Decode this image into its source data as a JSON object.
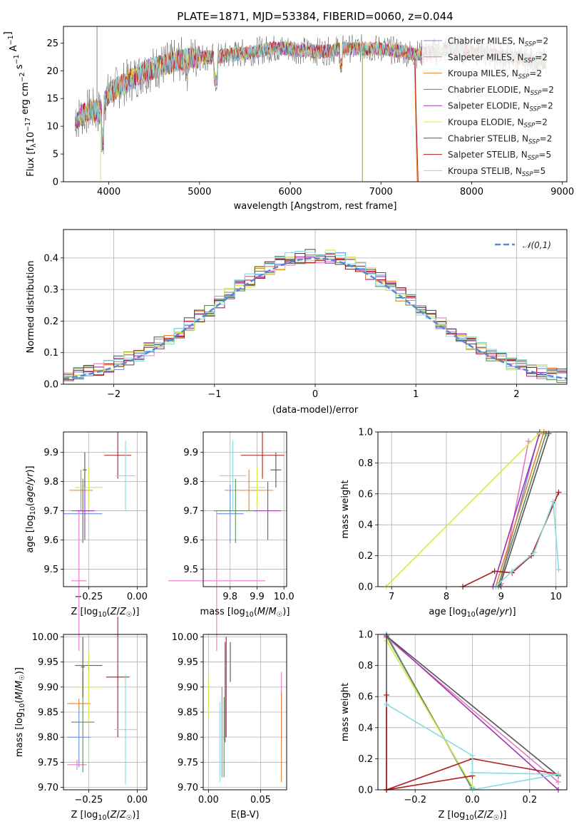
{
  "figure": {
    "title": "PLATE=1871, MJD=53384, FIBERID=0060, z=0.044"
  },
  "series_styles": [
    {
      "name": "Chabrier MILES",
      "nssp": "2",
      "color": "#6f8fd9"
    },
    {
      "name": "Salpeter MILES",
      "nssp": "2",
      "color": "#e47cc0"
    },
    {
      "name": "Kroupa MILES",
      "nssp": "2",
      "color": "#e8822a"
    },
    {
      "name": "Chabrier ELODIE",
      "nssp": "2",
      "color": "#5c8a5c"
    },
    {
      "name": "Salpeter ELODIE",
      "nssp": "2",
      "color": "#a035b0"
    },
    {
      "name": "Kroupa ELODIE",
      "nssp": "2",
      "color": "#d5e84a"
    },
    {
      "name": "Chabrier STELIB",
      "nssp": "2",
      "color": "#555555"
    },
    {
      "name": "Salpeter STELIB",
      "nssp": "5",
      "color": "#b01c1c"
    },
    {
      "name": "Kroupa STELIB",
      "nssp": "5",
      "color": "#87dbe0"
    }
  ],
  "chart_data": [
    {
      "id": "spectrum",
      "type": "line",
      "title": "PLATE=1871, MJD=53384, FIBERID=0060, z=0.044",
      "xlabel": "wavelength [Angstrom, rest frame]",
      "ylabel": "Flux [f_λ 10^-17 erg cm^-2 s^-1 A^-1]",
      "xlim": [
        3500,
        9050
      ],
      "ylim": [
        0,
        28
      ],
      "xticks": [
        "4000",
        "5000",
        "6000",
        "7000",
        "8000",
        "9000"
      ],
      "yticks": [
        "0",
        "5",
        "10",
        "15",
        "20",
        "25"
      ],
      "legend_position": "upper right",
      "data_envelope": {
        "x": [
          3620,
          3700,
          3800,
          3900,
          4000,
          4200,
          4400,
          4600,
          4800,
          5000,
          5200,
          5400,
          5600,
          5800,
          6000,
          6200,
          6400,
          6600,
          6800,
          7000,
          7200,
          7400,
          7600,
          7800,
          8000,
          8200,
          8400,
          8600,
          8800
        ],
        "y": [
          11,
          12,
          13,
          12.5,
          16,
          18,
          20,
          21,
          22,
          22.5,
          22.5,
          23,
          23.5,
          24,
          24,
          23.5,
          23.5,
          24,
          24,
          24,
          23.5,
          23,
          23.5,
          24,
          23.5,
          23,
          22.5,
          22,
          21.5
        ]
      }
    },
    {
      "id": "residual-histogram",
      "type": "bar",
      "xlabel": "(data-model)/error",
      "ylabel": "Normed distribution",
      "xlim": [
        -2.5,
        2.5
      ],
      "ylim": [
        0,
        0.49
      ],
      "xticks": [
        "−2",
        "−1",
        "0",
        "1",
        "2"
      ],
      "yticks": [
        "0.0",
        "0.1",
        "0.2",
        "0.3",
        "0.4"
      ],
      "reference_curve": {
        "name": "𝒩(0,1)",
        "mean": 0,
        "sigma": 1
      },
      "bin_width": 0.1
    },
    {
      "id": "age-vs-Z",
      "type": "scatter",
      "xlabel": "Z [log10(Z/Z☉)]",
      "ylabel": "age [log10(age/yr)]",
      "xlim": [
        -0.38,
        0.05
      ],
      "ylim": [
        9.44,
        9.97
      ],
      "xticks": [
        "−0.25",
        "0.00"
      ],
      "yticks": [
        "9.5",
        "9.6",
        "9.7",
        "9.8",
        "9.9"
      ],
      "points": [
        {
          "x": -0.28,
          "y": 9.69,
          "xerr": 0.1,
          "yerr": 0.1
        },
        {
          "x": -0.3,
          "y": 9.46,
          "xerr": 0.04,
          "yerr": 0.24
        },
        {
          "x": -0.29,
          "y": 9.77,
          "xerr": 0.06,
          "yerr": 0.07
        },
        {
          "x": -0.28,
          "y": 9.7,
          "xerr": 0.06,
          "yerr": 0.11
        },
        {
          "x": -0.27,
          "y": 9.7,
          "xerr": 0.05,
          "yerr": 0.1
        },
        {
          "x": -0.25,
          "y": 9.78,
          "xerr": 0.07,
          "yerr": 0.07
        },
        {
          "x": -0.27,
          "y": 9.84,
          "xerr": 0.01,
          "yerr": 0.06
        },
        {
          "x": -0.1,
          "y": 9.89,
          "xerr": 0.07,
          "yerr": 0.08
        },
        {
          "x": -0.06,
          "y": 9.82,
          "xerr": 0.05,
          "yerr": 0.12
        }
      ]
    },
    {
      "id": "age-vs-mass",
      "type": "scatter",
      "xlabel": "mass [log10(M/M☉)]",
      "ylabel": "",
      "xlim": [
        9.7,
        10.01
      ],
      "ylim": [
        9.44,
        9.97
      ],
      "xticks": [
        "9.8",
        "9.9",
        "10.0"
      ],
      "yticks": [
        "9.5",
        "9.6",
        "9.7",
        "9.8",
        "9.9"
      ],
      "points": [
        {
          "x": 9.8,
          "y": 9.69,
          "xerr": 0.05,
          "yerr": 0.1
        },
        {
          "x": 9.75,
          "y": 9.46,
          "xerr": 0.18,
          "yerr": 0.24
        },
        {
          "x": 9.87,
          "y": 9.77,
          "xerr": 0.09,
          "yerr": 0.07
        },
        {
          "x": 9.82,
          "y": 9.7,
          "xerr": 0.08,
          "yerr": 0.11
        },
        {
          "x": 9.94,
          "y": 9.7,
          "xerr": 0.05,
          "yerr": 0.1
        },
        {
          "x": 9.9,
          "y": 9.78,
          "xerr": 0.03,
          "yerr": 0.07
        },
        {
          "x": 9.97,
          "y": 9.84,
          "xerr": 0.02,
          "yerr": 0.06
        },
        {
          "x": 9.92,
          "y": 9.89,
          "xerr": 0.08,
          "yerr": 0.08
        },
        {
          "x": 9.81,
          "y": 9.82,
          "xerr": 0.05,
          "yerr": 0.12
        }
      ]
    },
    {
      "id": "mass-weight-vs-age",
      "type": "line",
      "xlabel": "age [log10(age/yr)]",
      "ylabel": "mass weight",
      "xlim": [
        6.75,
        10.2
      ],
      "ylim": [
        0,
        1
      ],
      "xticks": [
        "7",
        "8",
        "9",
        "10"
      ],
      "yticks": [
        "0.0",
        "0.2",
        "0.4",
        "0.6",
        "0.8",
        "1.0"
      ],
      "grid": true,
      "series": [
        {
          "x": [
            8.95,
            9.7
          ],
          "y": [
            0.0,
            1.0
          ]
        },
        {
          "x": [
            9.0,
            9.5
          ],
          "y": [
            0.02,
            0.94
          ]
        },
        {
          "x": [
            8.9,
            9.78
          ],
          "y": [
            0.0,
            1.0
          ]
        },
        {
          "x": [
            8.95,
            9.82
          ],
          "y": [
            0.01,
            0.99
          ]
        },
        {
          "x": [
            8.85,
            9.7
          ],
          "y": [
            0.0,
            0.99
          ]
        },
        {
          "x": [
            6.9,
            9.72
          ],
          "y": [
            0.0,
            1.0
          ]
        },
        {
          "x": [
            8.98,
            9.87
          ],
          "y": [
            0.01,
            0.99
          ]
        },
        {
          "x": [
            8.3,
            8.88,
            9.2,
            9.55,
            10.05
          ],
          "y": [
            0.0,
            0.1,
            0.09,
            0.2,
            0.61
          ]
        },
        {
          "x": [
            8.9,
            9.2,
            9.6,
            9.95,
            10.05
          ],
          "y": [
            0.0,
            0.1,
            0.22,
            0.55,
            0.11
          ]
        }
      ]
    },
    {
      "id": "mass-vs-Z",
      "type": "scatter",
      "xlabel": "Z [log10(Z/Z☉)]",
      "ylabel": "mass [log10(M/M☉)]",
      "xlim": [
        -0.38,
        0.05
      ],
      "ylim": [
        9.695,
        10.005
      ],
      "xticks": [
        "−0.25",
        "0.00"
      ],
      "yticks": [
        "9.70",
        "9.75",
        "9.80",
        "9.85",
        "9.90",
        "9.95",
        "10.00"
      ],
      "points": [
        {
          "x": -0.3,
          "y": 9.8,
          "xerr": 0.06,
          "yerr": 0.06
        },
        {
          "x": -0.31,
          "y": 9.745,
          "xerr": 0.05,
          "yerr": 0.01
        },
        {
          "x": -0.3,
          "y": 9.867,
          "xerr": 0.06,
          "yerr": 0.01
        },
        {
          "x": -0.28,
          "y": 9.83,
          "xerr": 0.06,
          "yerr": 0.1
        },
        {
          "x": -0.25,
          "y": 9.943,
          "xerr": 0.07,
          "yerr": 0.01
        },
        {
          "x": -0.25,
          "y": 9.9,
          "xerr": 0.07,
          "yerr": 0.07
        },
        {
          "x": -0.28,
          "y": 9.94,
          "xerr": 0.01,
          "yerr": 0.06
        },
        {
          "x": -0.1,
          "y": 9.92,
          "xerr": 0.06,
          "yerr": 0.12
        },
        {
          "x": -0.06,
          "y": 9.815,
          "xerr": 0.06,
          "yerr": 0.11
        }
      ]
    },
    {
      "id": "mass-vs-ebv",
      "type": "scatter",
      "xlabel": "E(B-V)",
      "ylabel": "",
      "xlim": [
        -0.005,
        0.075
      ],
      "ylim": [
        9.695,
        10.005
      ],
      "xticks": [
        "0.00",
        "0.05"
      ],
      "yticks": [
        "9.70",
        "9.75",
        "9.80",
        "9.85",
        "9.90",
        "9.95",
        "10.00"
      ],
      "points": [
        {
          "x": 0.013,
          "y": 9.81,
          "yerr": 0.09
        },
        {
          "x": 0.07,
          "y": 9.86,
          "yerr": 0.07
        },
        {
          "x": 0.07,
          "y": 9.8,
          "yerr": 0.09
        },
        {
          "x": 0.015,
          "y": 9.8,
          "yerr": 0.08
        },
        {
          "x": 0.016,
          "y": 9.89,
          "yerr": 0.1
        },
        {
          "x": 0.0,
          "y": 9.88,
          "yerr": 0.04
        },
        {
          "x": 0.021,
          "y": 9.95,
          "yerr": 0.04
        },
        {
          "x": 0.017,
          "y": 9.9,
          "yerr": 0.1
        },
        {
          "x": 0.011,
          "y": 9.79,
          "yerr": 0.08
        }
      ]
    },
    {
      "id": "mass-weight-vs-Z",
      "type": "line",
      "xlabel": "Z [log10(Z/Z☉)]",
      "ylabel": "mass weight",
      "xlim": [
        -0.33,
        0.33
      ],
      "ylim": [
        0,
        1
      ],
      "xticks": [
        "−0.2",
        "0.0",
        "0.2"
      ],
      "yticks": [
        "0.0",
        "0.2",
        "0.4",
        "0.6",
        "0.8",
        "1.0"
      ],
      "grid": true,
      "series": [
        {
          "x": [
            -0.3,
            0.0
          ],
          "y": [
            1.0,
            0.0
          ]
        },
        {
          "x": [
            -0.3,
            0.3
          ],
          "y": [
            0.98,
            0.05
          ]
        },
        {
          "x": [
            -0.3,
            0.0
          ],
          "y": [
            0.99,
            0.01
          ]
        },
        {
          "x": [
            -0.3,
            0.0
          ],
          "y": [
            0.99,
            0.01
          ]
        },
        {
          "x": [
            -0.3,
            0.3
          ],
          "y": [
            0.99,
            0.0
          ]
        },
        {
          "x": [
            -0.3,
            0.0
          ],
          "y": [
            0.96,
            0.02
          ]
        },
        {
          "x": [
            -0.3,
            -0.3,
            0.3
          ],
          "y": [
            0.0,
            0.99,
            0.09
          ]
        },
        {
          "x": [
            -0.3,
            -0.3,
            0.0,
            -0.3,
            0.0,
            0.3
          ],
          "y": [
            0.61,
            0.0,
            0.09,
            0.0,
            0.2,
            0.1
          ]
        },
        {
          "x": [
            -0.3,
            0.0,
            0.0,
            0.3,
            0.0
          ],
          "y": [
            0.55,
            0.22,
            0.11,
            0.1,
            0.0
          ]
        }
      ]
    }
  ]
}
